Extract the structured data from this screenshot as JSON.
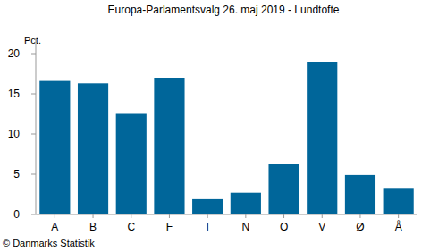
{
  "chart_data": {
    "type": "bar",
    "title": "Europa-Parlamentsvalg 26. maj 2019 - Lundtofte",
    "y_label": "Pct.",
    "source": "© Danmarks Statistik",
    "categories": [
      "A",
      "B",
      "C",
      "F",
      "I",
      "N",
      "O",
      "V",
      "Ø",
      "Å"
    ],
    "values": [
      16.6,
      16.3,
      12.5,
      17.0,
      1.9,
      2.7,
      6.3,
      19.0,
      4.9,
      3.3
    ],
    "color": "#00669a",
    "ylim": [
      0,
      22
    ],
    "yticks": [
      0,
      5,
      10,
      15,
      20
    ],
    "grid": false
  }
}
